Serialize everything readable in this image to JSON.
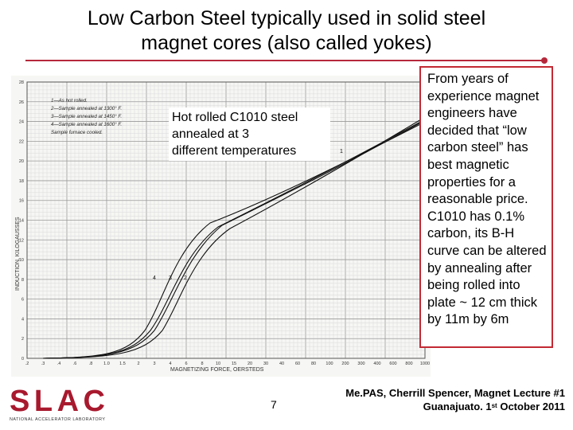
{
  "slide": {
    "title_line1": "Low Carbon Steel typically used in solid steel",
    "title_line2": "magnet cores (also called yokes)",
    "page_number": "7",
    "accent_color": "#b5283b"
  },
  "callout": {
    "line1": "Hot rolled C1010 steel",
    "line2": "annealed at 3",
    "line3": "different temperatures"
  },
  "sidebar": {
    "text": "From years of experience magnet engineers have decided that “low carbon steel” has best magnetic properties for a reasonable price. C1010 has 0.1% carbon, its B-H curve can be altered by annealing after being rolled into plate ~ 12 cm thick by 11m by 6m"
  },
  "footer": {
    "line1": "Me.PAS, Cherrill Spencer, Magnet Lecture #1",
    "line2_prefix": "Guanajuato. 1",
    "line2_sup": "st",
    "line2_suffix": " October 2011"
  },
  "logo": {
    "text": "SLAC",
    "subtext": "NATIONAL ACCELERATOR LABORATORY",
    "color": "#a8192e"
  },
  "chart_legend": [
    "1—As hot rolled.",
    "2—Sample annealed at 1300° F.",
    "3—Sample annealed at 1450° F.",
    "4—Sample annealed at 1600° F.",
    "Sample furnace cooled."
  ],
  "chart_axis": {
    "ylabel": "INDUCTION, KILOGAUSSES",
    "xlabel": "MAGNETIZING FORCE, OERSTEDS",
    "yticks": [
      "0",
      "2",
      "4",
      "6",
      "8",
      "10",
      "12",
      "14",
      "16",
      "18",
      "20",
      "22",
      "24",
      "26",
      "28"
    ],
    "xticks": [
      ".2",
      ".3",
      ".4",
      ".6",
      ".8",
      "1.0",
      "1.5",
      "2",
      "3",
      "4",
      "6",
      "8",
      "10",
      "15",
      "20",
      "30",
      "40",
      "60",
      "80",
      "100",
      "200",
      "300",
      "400",
      "600",
      "800",
      "1000"
    ],
    "curve_labels": [
      "1",
      "2",
      "3",
      "4"
    ]
  }
}
